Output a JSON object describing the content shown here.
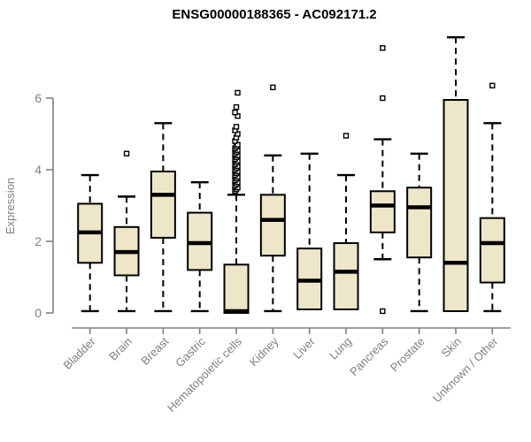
{
  "chart_data": {
    "type": "boxplot",
    "title": "ENSG00000188365 - AC092171.2",
    "ylabel": "Expression",
    "xlabel": "",
    "y_ticks": [
      0,
      2,
      4,
      6
    ],
    "ylim": [
      0,
      7.8
    ],
    "grid": false,
    "legend": "none",
    "colors": {
      "box_fill": "#EDE6C9",
      "box_stroke": "#000000",
      "median": "#000000",
      "whisker": "#000000",
      "axis": "#808080",
      "tick_label": "#808080",
      "title": "#000000",
      "background": "#FFFFFF"
    },
    "categories": [
      "Bladder",
      "Brain",
      "Breast",
      "Gastric",
      "Hematopoietic cells",
      "Kidney",
      "Liver",
      "Lung",
      "Pancreas",
      "Prostate",
      "Skin",
      "Unknown / Other"
    ],
    "series": [
      {
        "name": "Bladder",
        "whisker_low": 0.05,
        "q1": 1.4,
        "median": 2.25,
        "q3": 3.05,
        "whisker_high": 3.85,
        "outliers": []
      },
      {
        "name": "Brain",
        "whisker_low": 0.05,
        "q1": 1.05,
        "median": 1.7,
        "q3": 2.4,
        "whisker_high": 3.25,
        "outliers": [
          4.45
        ]
      },
      {
        "name": "Breast",
        "whisker_low": 0.05,
        "q1": 2.1,
        "median": 3.3,
        "q3": 3.95,
        "whisker_high": 5.3,
        "outliers": []
      },
      {
        "name": "Gastric",
        "whisker_low": 0.05,
        "q1": 1.2,
        "median": 1.95,
        "q3": 2.8,
        "whisker_high": 3.65,
        "outliers": []
      },
      {
        "name": "Hematopoietic cells",
        "whisker_low": 0.0,
        "q1": 0.0,
        "median": 0.05,
        "q3": 1.35,
        "whisker_high": 3.3,
        "outliers": [
          3.4,
          3.45,
          3.5,
          3.55,
          3.6,
          3.65,
          3.7,
          3.75,
          3.8,
          3.85,
          3.9,
          3.95,
          4.0,
          4.05,
          4.1,
          4.15,
          4.2,
          4.25,
          4.3,
          4.35,
          4.4,
          4.45,
          4.5,
          4.55,
          4.6,
          4.65,
          4.7,
          4.8,
          4.9,
          5.0,
          5.1,
          5.2,
          5.5,
          5.6,
          5.75,
          6.15
        ]
      },
      {
        "name": "Kidney",
        "whisker_low": 0.05,
        "q1": 1.6,
        "median": 2.6,
        "q3": 3.3,
        "whisker_high": 4.4,
        "outliers": [
          6.3
        ]
      },
      {
        "name": "Liver",
        "whisker_low": 0.05,
        "q1": 0.1,
        "median": 0.9,
        "q3": 1.8,
        "whisker_high": 4.45,
        "outliers": []
      },
      {
        "name": "Lung",
        "whisker_low": 0.05,
        "q1": 0.1,
        "median": 1.15,
        "q3": 1.95,
        "whisker_high": 3.85,
        "outliers": [
          4.95
        ]
      },
      {
        "name": "Pancreas",
        "whisker_low": 1.5,
        "q1": 2.25,
        "median": 3.0,
        "q3": 3.4,
        "whisker_high": 4.85,
        "outliers": [
          6.0,
          7.4,
          0.05
        ]
      },
      {
        "name": "Prostate",
        "whisker_low": 0.05,
        "q1": 1.55,
        "median": 2.95,
        "q3": 3.5,
        "whisker_high": 4.45,
        "outliers": []
      },
      {
        "name": "Skin",
        "whisker_low": 0.0,
        "q1": 0.05,
        "median": 1.4,
        "q3": 5.95,
        "whisker_high": 7.7,
        "outliers": []
      },
      {
        "name": "Unknown / Other",
        "whisker_low": 0.05,
        "q1": 0.85,
        "median": 1.95,
        "q3": 2.65,
        "whisker_high": 5.3,
        "outliers": [
          6.35
        ]
      }
    ]
  }
}
